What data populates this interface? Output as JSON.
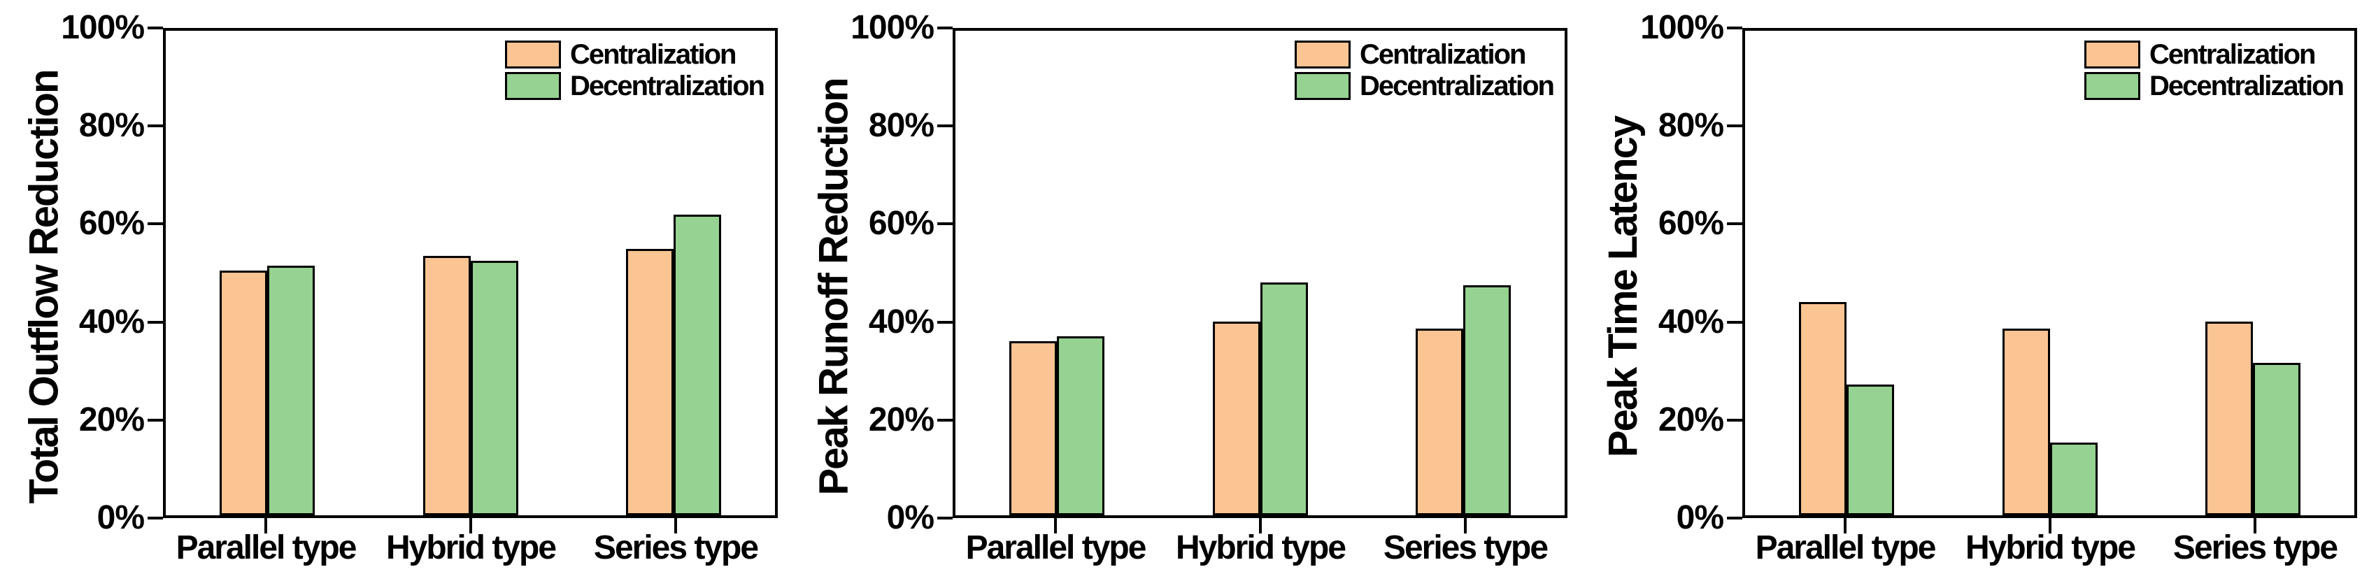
{
  "page": {
    "background": "#ffffff",
    "text_color": "#000000",
    "frame_color": "#000000"
  },
  "series_colors": {
    "centralization": "#FAC493",
    "decentralization": "#96D291"
  },
  "legend": {
    "position": "top-right-inside",
    "items": [
      {
        "label": "Centralization",
        "color": "#FAC493"
      },
      {
        "label": "Decentralization",
        "color": "#96D291"
      }
    ]
  },
  "chart_data": [
    {
      "type": "bar",
      "title": "",
      "ylabel": "Total Outflow Reduction",
      "xlabel": "",
      "categories": [
        "Parallel type",
        "Hybrid type",
        "Series type"
      ],
      "series": [
        {
          "name": "Centralization",
          "color": "#FAC493",
          "values": [
            50.5,
            53.5,
            55
          ]
        },
        {
          "name": "Decentralization",
          "color": "#96D291",
          "values": [
            51.5,
            52.5,
            62
          ]
        }
      ],
      "ylim": [
        0,
        100
      ],
      "ytick_values": [
        0,
        20,
        40,
        60,
        80,
        100
      ],
      "ytick_labels": [
        "0%",
        "20%",
        "40%",
        "60%",
        "80%",
        "100%"
      ],
      "grid": false,
      "legend_position": "top-right"
    },
    {
      "type": "bar",
      "title": "",
      "ylabel": "Peak Runoff Reduction",
      "xlabel": "",
      "categories": [
        "Parallel type",
        "Hybrid type",
        "Series type"
      ],
      "series": [
        {
          "name": "Centralization",
          "color": "#FAC493",
          "values": [
            36,
            40,
            38.5
          ]
        },
        {
          "name": "Decentralization",
          "color": "#96D291",
          "values": [
            37,
            48,
            47.5
          ]
        }
      ],
      "ylim": [
        0,
        100
      ],
      "ytick_values": [
        0,
        20,
        40,
        60,
        80,
        100
      ],
      "ytick_labels": [
        "0%",
        "20%",
        "40%",
        "60%",
        "80%",
        "100%"
      ],
      "grid": false,
      "legend_position": "top-right"
    },
    {
      "type": "bar",
      "title": "",
      "ylabel": "Peak Time Latency",
      "xlabel": "",
      "categories": [
        "Parallel type",
        "Hybrid type",
        "Series type"
      ],
      "series": [
        {
          "name": "Centralization",
          "color": "#FAC493",
          "values": [
            44,
            38.5,
            40
          ]
        },
        {
          "name": "Decentralization",
          "color": "#96D291",
          "values": [
            27,
            15,
            31.5
          ]
        }
      ],
      "ylim": [
        0,
        100
      ],
      "ytick_values": [
        0,
        20,
        40,
        60,
        80,
        100
      ],
      "ytick_labels": [
        "0%",
        "20%",
        "40%",
        "60%",
        "80%",
        "100%"
      ],
      "grid": false,
      "legend_position": "top-right"
    }
  ]
}
